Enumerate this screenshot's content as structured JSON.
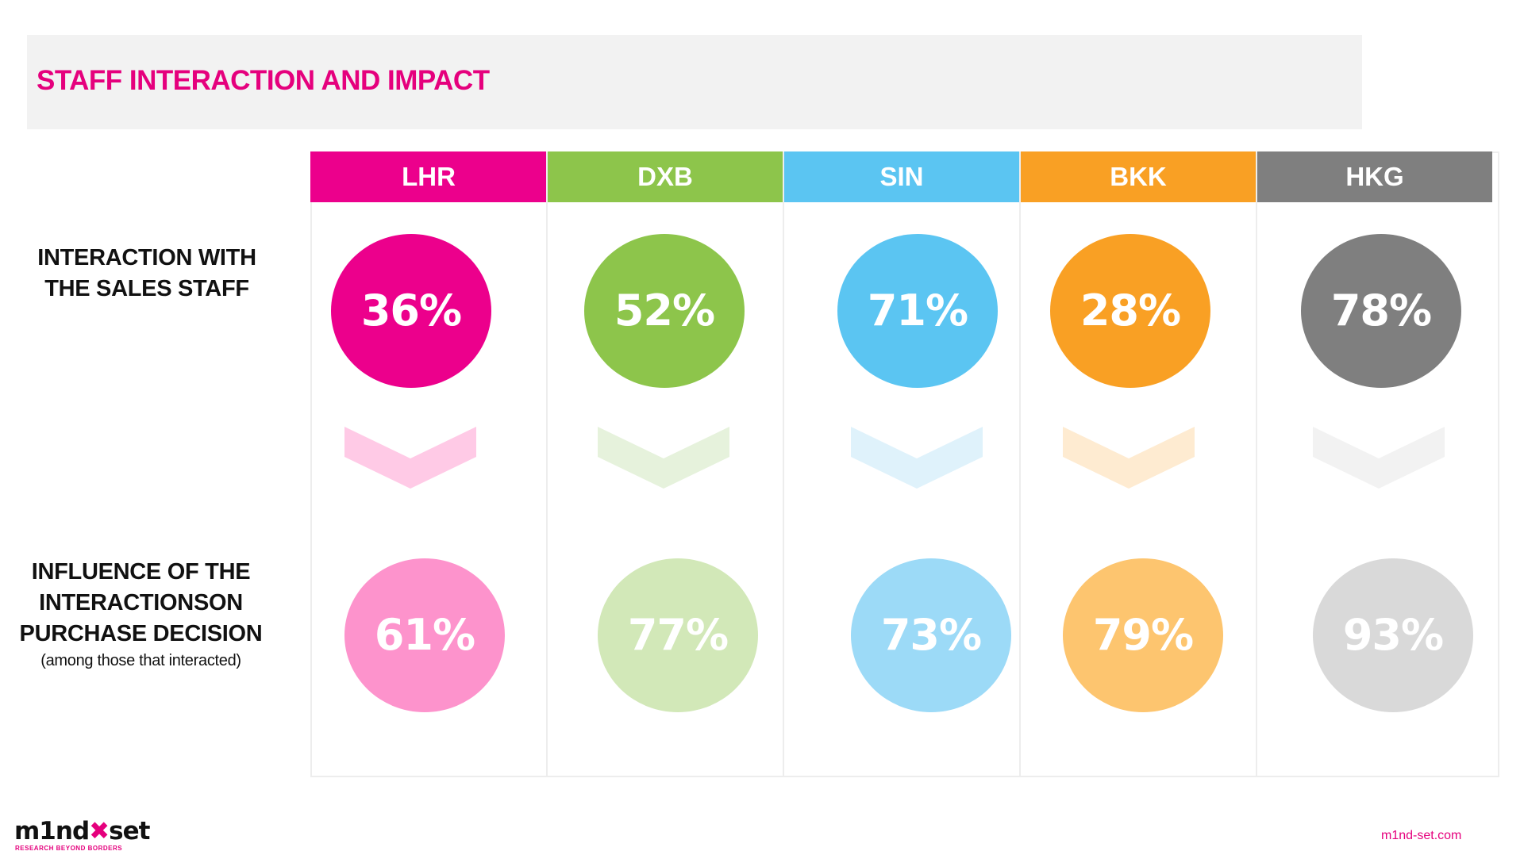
{
  "title": "STAFF INTERACTION AND IMPACT",
  "row_labels": {
    "interaction": [
      "INTERACTION WITH",
      "THE SALES STAFF"
    ],
    "influence": [
      "INFLUENCE  OF THE",
      "INTERACTIONSON",
      "PURCHASE DECISION"
    ],
    "influence_note": "(among those that interacted)"
  },
  "chart_data": {
    "type": "table",
    "categories": [
      "LHR",
      "DXB",
      "SIN",
      "BKK",
      "HKG"
    ],
    "series": [
      {
        "name": "INTERACTION WITH THE SALES STAFF",
        "values": [
          36,
          52,
          71,
          28,
          78
        ]
      },
      {
        "name": "INFLUENCE OF THE INTERACTIONSON PURCHASE DECISION",
        "values": [
          61,
          77,
          73,
          79,
          93
        ]
      }
    ],
    "value_labels": {
      "interaction": [
        "36%",
        "52%",
        "71%",
        "28%",
        "78%"
      ],
      "influence": [
        "61%",
        "77%",
        "73%",
        "79%",
        "93%"
      ]
    },
    "colors": {
      "header": [
        "#ec008c",
        "#8dc54b",
        "#5bc5f2",
        "#f9a024",
        "#7f7f7f"
      ],
      "interaction": [
        "#ec008c",
        "#8dc54b",
        "#5bc5f2",
        "#f9a024",
        "#7f7f7f"
      ],
      "influence": [
        "#fd93cc",
        "#d2e8b8",
        "#9cdaf7",
        "#fdc56f",
        "#d9d9d9"
      ],
      "arrow": [
        "#ffcae6",
        "#e6f2dc",
        "#dff2fb",
        "#feebd1",
        "#f2f2f2"
      ]
    }
  },
  "footer": {
    "logo_text_a": "m1nd",
    "logo_text_x": "✖",
    "logo_text_b": "set",
    "logo_tagline": "RESEARCH BEYOND BORDERS",
    "site": "m1nd-set.com"
  }
}
